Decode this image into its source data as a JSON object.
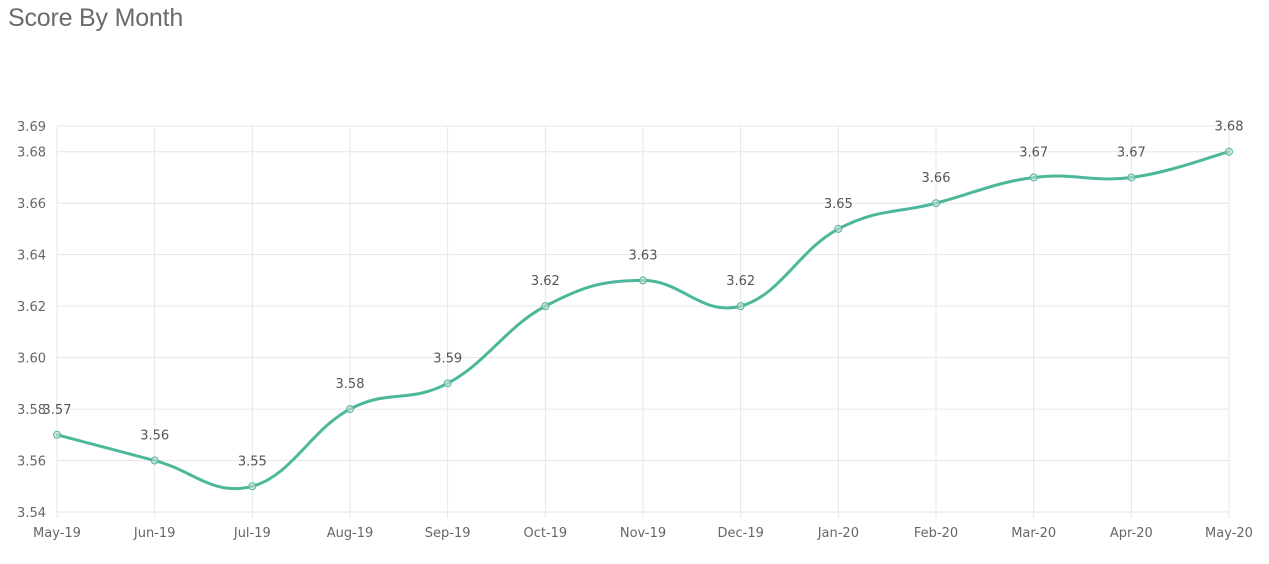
{
  "title": "Score By Month",
  "colors": {
    "line": "#4cb79a",
    "grid": "#e6e6e6",
    "text": "#666666"
  },
  "chart_data": {
    "type": "line",
    "title": "Score By Month",
    "xlabel": "",
    "ylabel": "",
    "categories": [
      "May-19",
      "Jun-19",
      "Jul-19",
      "Aug-19",
      "Sep-19",
      "Oct-19",
      "Nov-19",
      "Dec-19",
      "Jan-20",
      "Feb-20",
      "Mar-20",
      "Apr-20",
      "May-20"
    ],
    "series": [
      {
        "values": [
          3.57,
          3.56,
          3.55,
          3.58,
          3.59,
          3.62,
          3.63,
          3.62,
          3.65,
          3.66,
          3.67,
          3.67,
          3.68
        ],
        "labels": [
          "3.57",
          "3.56",
          "3.55",
          "3.58",
          "3.59",
          "3.62",
          "3.63",
          "3.62",
          "3.65",
          "3.66",
          "3.67",
          "3.67",
          "3.68"
        ]
      }
    ],
    "ylim": [
      3.54,
      3.69
    ],
    "yticks": [
      "3.54",
      "3.56",
      "3.58",
      "3.60",
      "3.62",
      "3.64",
      "3.66",
      "3.68",
      "3.69"
    ],
    "ytick_values": [
      3.54,
      3.56,
      3.58,
      3.6,
      3.62,
      3.64,
      3.66,
      3.68,
      3.69
    ],
    "grid": true,
    "smooth": true,
    "data_labels": true,
    "legend": "none"
  }
}
